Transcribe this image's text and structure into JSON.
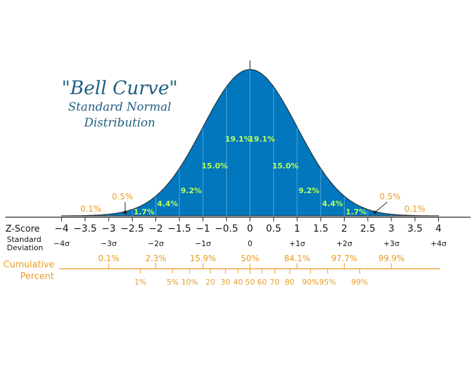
{
  "title": "\"Bell Curve\"",
  "subtitle_line1": "Standard Normal",
  "subtitle_line2": "Distribution",
  "colors": {
    "curve_fill": "#0277bd",
    "band_line": "#4ea8d8",
    "inner_label": "#b8ff5a",
    "accent": "#e89c22",
    "text": "#111111"
  },
  "row_labels": {
    "zscore": "Z-Score",
    "sd_line1": "Standard",
    "sd_line2": "Deviation",
    "cum_line1": "Cumulative",
    "cum_line2": "Percent"
  },
  "chart_data": {
    "type": "area",
    "distribution": "standard normal",
    "xlim": [
      -4,
      4
    ],
    "z_ticks": [
      {
        "z": -4,
        "label": "−4"
      },
      {
        "z": -3.5,
        "label": "−3.5"
      },
      {
        "z": -3,
        "label": "−3"
      },
      {
        "z": -2.5,
        "label": "−2.5"
      },
      {
        "z": -2,
        "label": "−2"
      },
      {
        "z": -1.5,
        "label": "−1.5"
      },
      {
        "z": -1,
        "label": "−1"
      },
      {
        "z": -0.5,
        "label": "−0.5"
      },
      {
        "z": 0,
        "label": "0"
      },
      {
        "z": 0.5,
        "label": "0.5"
      },
      {
        "z": 1,
        "label": "1"
      },
      {
        "z": 1.5,
        "label": "1.5"
      },
      {
        "z": 2,
        "label": "2"
      },
      {
        "z": 2.5,
        "label": "2.5"
      },
      {
        "z": 3,
        "label": "3"
      },
      {
        "z": 3.5,
        "label": "3.5"
      },
      {
        "z": 4,
        "label": "4"
      }
    ],
    "sd_ticks": [
      {
        "z": -4,
        "label": "−4σ"
      },
      {
        "z": -3,
        "label": "−3σ"
      },
      {
        "z": -2,
        "label": "−2σ"
      },
      {
        "z": -1,
        "label": "−1σ"
      },
      {
        "z": 0,
        "label": "0"
      },
      {
        "z": 1,
        "label": "+1σ"
      },
      {
        "z": 2,
        "label": "+2σ"
      },
      {
        "z": 3,
        "label": "+3σ"
      },
      {
        "z": 4,
        "label": "+4σ"
      }
    ],
    "band_percents": [
      {
        "from": -3,
        "to": -2.5,
        "label": "0.5%"
      },
      {
        "from": -2.5,
        "to": -2,
        "label": "1.7%"
      },
      {
        "from": -2,
        "to": -1.5,
        "label": "4.4%"
      },
      {
        "from": -1.5,
        "to": -1,
        "label": "9.2%"
      },
      {
        "from": -1,
        "to": -0.5,
        "label": "15.0%"
      },
      {
        "from": -0.5,
        "to": 0,
        "label": "19.1%"
      },
      {
        "from": 0,
        "to": 0.5,
        "label": "19.1%"
      },
      {
        "from": 0.5,
        "to": 1,
        "label": "15.0%"
      },
      {
        "from": 1,
        "to": 1.5,
        "label": "9.2%"
      },
      {
        "from": 1.5,
        "to": 2,
        "label": "4.4%"
      },
      {
        "from": 2,
        "to": 2.5,
        "label": "1.7%"
      },
      {
        "from": 2.5,
        "to": 3,
        "label": "0.5%"
      }
    ],
    "tail_percents": [
      {
        "side": "left",
        "label": "0.1%"
      },
      {
        "side": "right",
        "label": "0.1%"
      }
    ],
    "cumulative_top": [
      {
        "z": -3,
        "label": "0.1%"
      },
      {
        "z": -2,
        "label": "2.3%"
      },
      {
        "z": -1,
        "label": "15.9%"
      },
      {
        "z": 0,
        "label": "50%"
      },
      {
        "z": 1,
        "label": "84.1%"
      },
      {
        "z": 2,
        "label": "97.7%"
      },
      {
        "z": 3,
        "label": "99.9%"
      }
    ],
    "cumulative_bottom": [
      {
        "z": -2.326,
        "label": "1%"
      },
      {
        "z": -1.645,
        "label": "5%"
      },
      {
        "z": -1.282,
        "label": "10%"
      },
      {
        "z": -0.842,
        "label": "20"
      },
      {
        "z": -0.524,
        "label": "30"
      },
      {
        "z": -0.253,
        "label": "40"
      },
      {
        "z": 0,
        "label": "50"
      },
      {
        "z": 0.253,
        "label": "60"
      },
      {
        "z": 0.524,
        "label": "70"
      },
      {
        "z": 0.842,
        "label": "80"
      },
      {
        "z": 1.282,
        "label": "90%"
      },
      {
        "z": 1.645,
        "label": "95%"
      },
      {
        "z": 2.326,
        "label": "99%"
      }
    ]
  }
}
